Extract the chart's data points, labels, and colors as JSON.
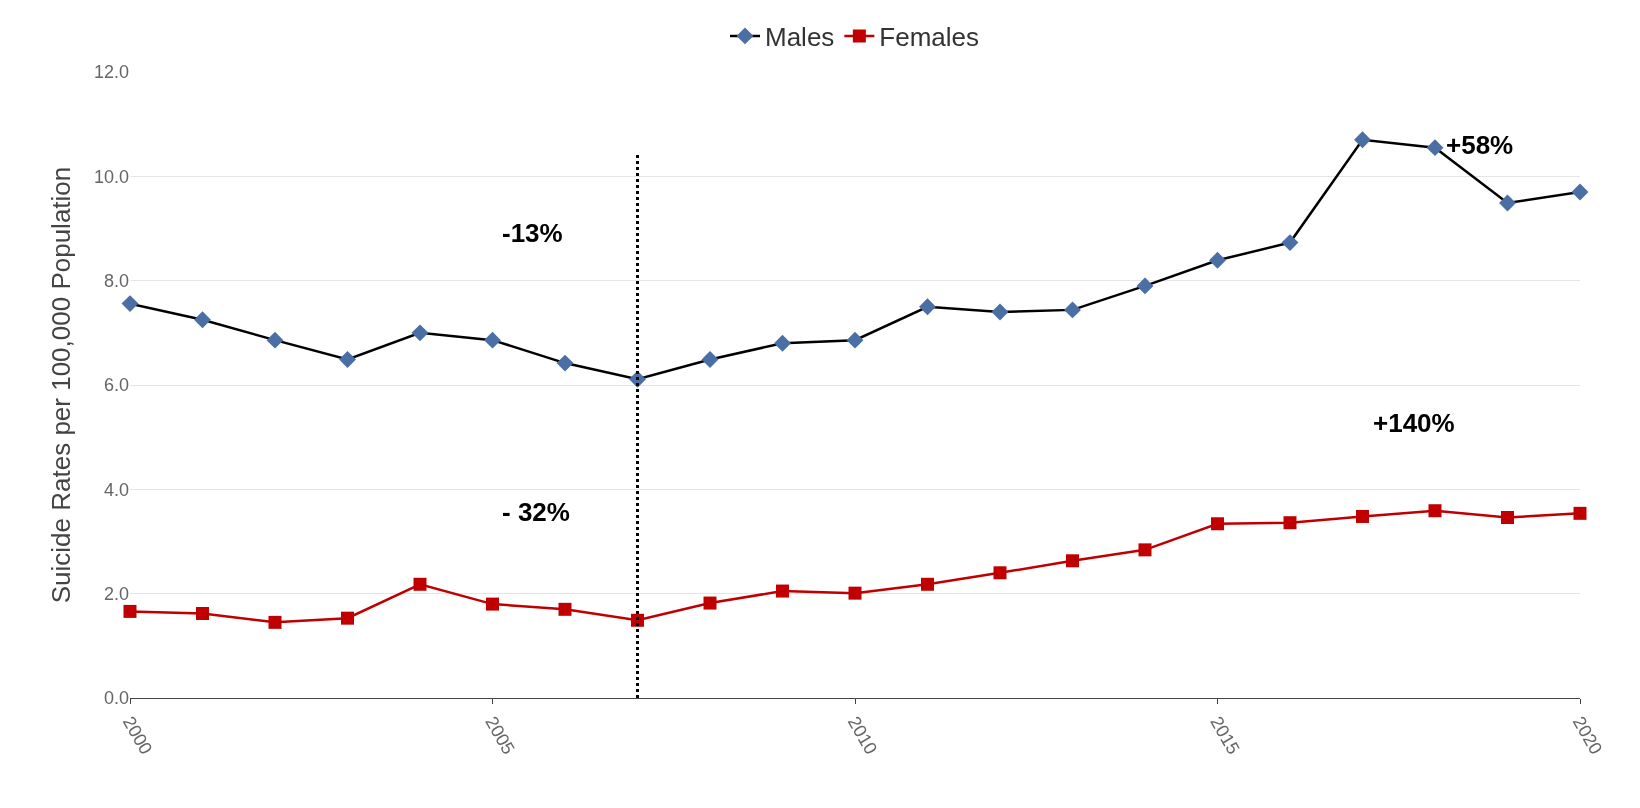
{
  "chart_data": {
    "type": "line",
    "ylabel": "Suicide Rates per 100,000 Population",
    "x": [
      2000,
      2001,
      2002,
      2003,
      2004,
      2005,
      2006,
      2007,
      2008,
      2009,
      2010,
      2011,
      2012,
      2013,
      2014,
      2015,
      2016,
      2017,
      2018,
      2019,
      2020
    ],
    "series": [
      {
        "name": "Males",
        "color": "#4a6fa5",
        "marker": "diamond",
        "values": [
          7.56,
          7.25,
          6.86,
          6.49,
          7.0,
          6.86,
          6.42,
          6.11,
          6.49,
          6.8,
          6.86,
          7.5,
          7.4,
          7.44,
          7.9,
          8.39,
          8.73,
          10.7,
          10.55,
          9.49,
          9.7
        ]
      },
      {
        "name": "Females",
        "color": "#c00000",
        "marker": "square",
        "values": [
          1.66,
          1.62,
          1.45,
          1.53,
          2.18,
          1.8,
          1.7,
          1.49,
          1.82,
          2.05,
          2.01,
          2.18,
          2.4,
          2.63,
          2.84,
          3.34,
          3.36,
          3.48,
          3.59,
          3.46,
          3.54
        ]
      }
    ],
    "xlim": [
      2000,
      2020
    ],
    "xticks": [
      2000,
      2005,
      2010,
      2015,
      2020
    ],
    "ylim": [
      0,
      12
    ],
    "yticks": [
      {
        "value": 0,
        "label": "0.0"
      },
      {
        "value": 2,
        "label": "2.0"
      },
      {
        "value": 4,
        "label": "4.0"
      },
      {
        "value": 6,
        "label": "6.0"
      },
      {
        "value": 8,
        "label": "8.0"
      },
      {
        "value": 10,
        "label": "10.0"
      },
      {
        "value": 12,
        "label": "12.0"
      }
    ],
    "ref_lines": [
      {
        "axis": "x",
        "value": 2007,
        "color": "#000000",
        "line_style": "dotted"
      }
    ],
    "annotations": [
      "-13%",
      "- 32%",
      "+58%",
      "+140%"
    ],
    "grid": "y",
    "legend": "top"
  }
}
